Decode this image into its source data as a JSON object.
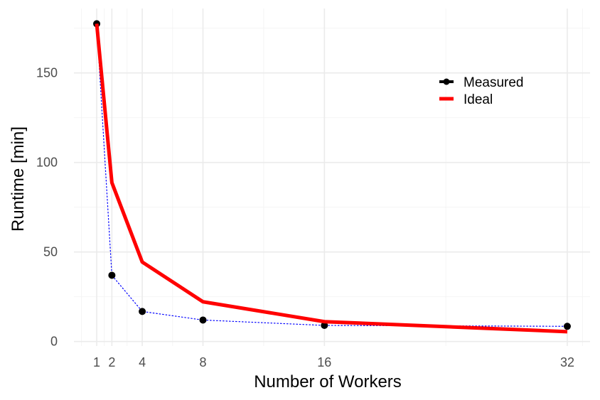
{
  "chart_data": {
    "type": "line",
    "xlabel": "Number of Workers",
    "ylabel": "Runtime [min]",
    "xlim": [
      -0.5,
      33.5
    ],
    "ylim": [
      -2.5,
      186
    ],
    "x_ticks": [
      1,
      2,
      4,
      8,
      16,
      32
    ],
    "y_ticks": [
      0,
      50,
      100,
      150
    ],
    "grid": true,
    "legend": "top-right",
    "series": [
      {
        "name": "Measured",
        "color": "#000000",
        "line_color": "#0000ff",
        "line_style": "dotted",
        "x": [
          1,
          2,
          4,
          8,
          16,
          32
        ],
        "y": [
          177.5,
          37,
          16.8,
          12,
          9,
          8.5
        ]
      },
      {
        "name": "Ideal",
        "color": "#ff0000",
        "line_style": "solid",
        "x": [
          1,
          2,
          4,
          8,
          16,
          32
        ],
        "y": [
          177.5,
          88.75,
          44.4,
          22.2,
          11.1,
          5.5
        ]
      }
    ]
  }
}
